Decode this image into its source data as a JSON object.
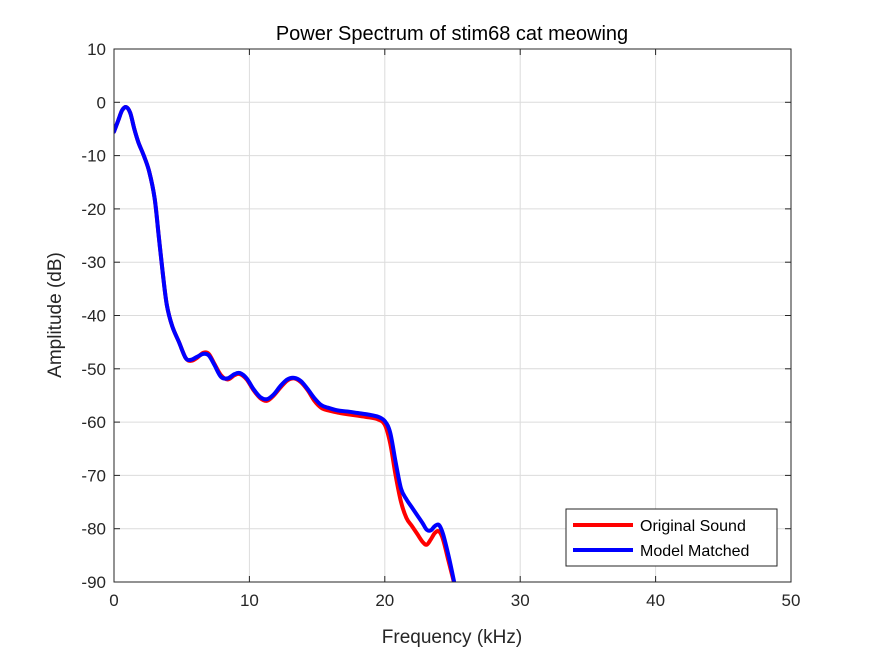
{
  "chart_data": {
    "type": "line",
    "title": "Power Spectrum of stim68 cat meowing",
    "xlabel": "Frequency (kHz)",
    "ylabel": "Amplitude (dB)",
    "xlim": [
      0,
      50
    ],
    "ylim": [
      -90,
      10
    ],
    "xticks": [
      0,
      10,
      20,
      30,
      40,
      50
    ],
    "yticks": [
      10,
      0,
      -10,
      -20,
      -30,
      -40,
      -50,
      -60,
      -70,
      -80,
      -90
    ],
    "grid": true,
    "legend_position": "bottom-right",
    "series": [
      {
        "name": "Original Sound",
        "color": "#ff0000",
        "points": [
          [
            0,
            -5.5
          ],
          [
            0.3,
            -3.5
          ],
          [
            0.6,
            -1.5
          ],
          [
            0.9,
            -0.9
          ],
          [
            1.2,
            -2
          ],
          [
            1.5,
            -5
          ],
          [
            1.8,
            -7.5
          ],
          [
            2.2,
            -10
          ],
          [
            2.6,
            -13
          ],
          [
            3,
            -18
          ],
          [
            3.3,
            -25
          ],
          [
            3.6,
            -32
          ],
          [
            3.9,
            -38
          ],
          [
            4.3,
            -42
          ],
          [
            4.8,
            -45
          ],
          [
            5.3,
            -48
          ],
          [
            5.7,
            -48.5
          ],
          [
            6.1,
            -48
          ],
          [
            6.6,
            -47
          ],
          [
            7,
            -47.2
          ],
          [
            7.4,
            -49
          ],
          [
            7.9,
            -51.2
          ],
          [
            8.4,
            -52
          ],
          [
            8.9,
            -51.2
          ],
          [
            9.3,
            -51
          ],
          [
            9.8,
            -52
          ],
          [
            10.3,
            -54
          ],
          [
            10.8,
            -55.5
          ],
          [
            11.3,
            -56
          ],
          [
            11.8,
            -55
          ],
          [
            12.3,
            -53.5
          ],
          [
            12.8,
            -52.2
          ],
          [
            13.3,
            -51.8
          ],
          [
            13.8,
            -52.5
          ],
          [
            14.3,
            -54
          ],
          [
            14.8,
            -56
          ],
          [
            15.3,
            -57.3
          ],
          [
            15.8,
            -57.8
          ],
          [
            16.5,
            -58.2
          ],
          [
            17.2,
            -58.5
          ],
          [
            18,
            -58.8
          ],
          [
            18.8,
            -59.1
          ],
          [
            19.5,
            -59.5
          ],
          [
            20,
            -60.5
          ],
          [
            20.4,
            -64
          ],
          [
            20.8,
            -70
          ],
          [
            21.2,
            -75
          ],
          [
            21.6,
            -78
          ],
          [
            22,
            -79.5
          ],
          [
            22.4,
            -81
          ],
          [
            22.8,
            -82.5
          ],
          [
            23.1,
            -83
          ],
          [
            23.4,
            -82
          ],
          [
            23.7,
            -80.8
          ],
          [
            24,
            -80.5
          ],
          [
            24.3,
            -82
          ],
          [
            24.7,
            -86
          ],
          [
            25,
            -89
          ],
          [
            25.2,
            -91
          ]
        ]
      },
      {
        "name": "Model Matched",
        "color": "#0000ff",
        "points": [
          [
            0,
            -5.5
          ],
          [
            0.3,
            -3.5
          ],
          [
            0.6,
            -1.5
          ],
          [
            0.9,
            -0.9
          ],
          [
            1.2,
            -2
          ],
          [
            1.5,
            -5
          ],
          [
            1.8,
            -7.5
          ],
          [
            2.2,
            -10
          ],
          [
            2.6,
            -13
          ],
          [
            3,
            -18
          ],
          [
            3.3,
            -25
          ],
          [
            3.6,
            -32
          ],
          [
            3.9,
            -38
          ],
          [
            4.3,
            -42
          ],
          [
            4.8,
            -45
          ],
          [
            5.3,
            -48
          ],
          [
            5.7,
            -48.3
          ],
          [
            6.1,
            -47.8
          ],
          [
            6.6,
            -47.2
          ],
          [
            7,
            -47.5
          ],
          [
            7.4,
            -49.2
          ],
          [
            7.9,
            -51.5
          ],
          [
            8.4,
            -51.8
          ],
          [
            8.9,
            -51
          ],
          [
            9.3,
            -50.8
          ],
          [
            9.8,
            -51.8
          ],
          [
            10.3,
            -53.8
          ],
          [
            10.8,
            -55.3
          ],
          [
            11.3,
            -55.7
          ],
          [
            11.8,
            -54.8
          ],
          [
            12.3,
            -53.2
          ],
          [
            12.8,
            -52
          ],
          [
            13.3,
            -51.7
          ],
          [
            13.8,
            -52.3
          ],
          [
            14.3,
            -53.8
          ],
          [
            14.8,
            -55.5
          ],
          [
            15.3,
            -56.8
          ],
          [
            15.8,
            -57.3
          ],
          [
            16.5,
            -57.8
          ],
          [
            17.2,
            -58
          ],
          [
            18,
            -58.3
          ],
          [
            18.8,
            -58.6
          ],
          [
            19.5,
            -59
          ],
          [
            20,
            -59.8
          ],
          [
            20.4,
            -62
          ],
          [
            20.8,
            -67.5
          ],
          [
            21.2,
            -72.5
          ],
          [
            21.6,
            -74.5
          ],
          [
            22,
            -76
          ],
          [
            22.4,
            -77.5
          ],
          [
            22.8,
            -79
          ],
          [
            23.1,
            -80.2
          ],
          [
            23.4,
            -80.3
          ],
          [
            23.7,
            -79.5
          ],
          [
            24,
            -79.3
          ],
          [
            24.3,
            -81
          ],
          [
            24.7,
            -85
          ],
          [
            25,
            -88.5
          ],
          [
            25.2,
            -91
          ]
        ]
      }
    ]
  }
}
